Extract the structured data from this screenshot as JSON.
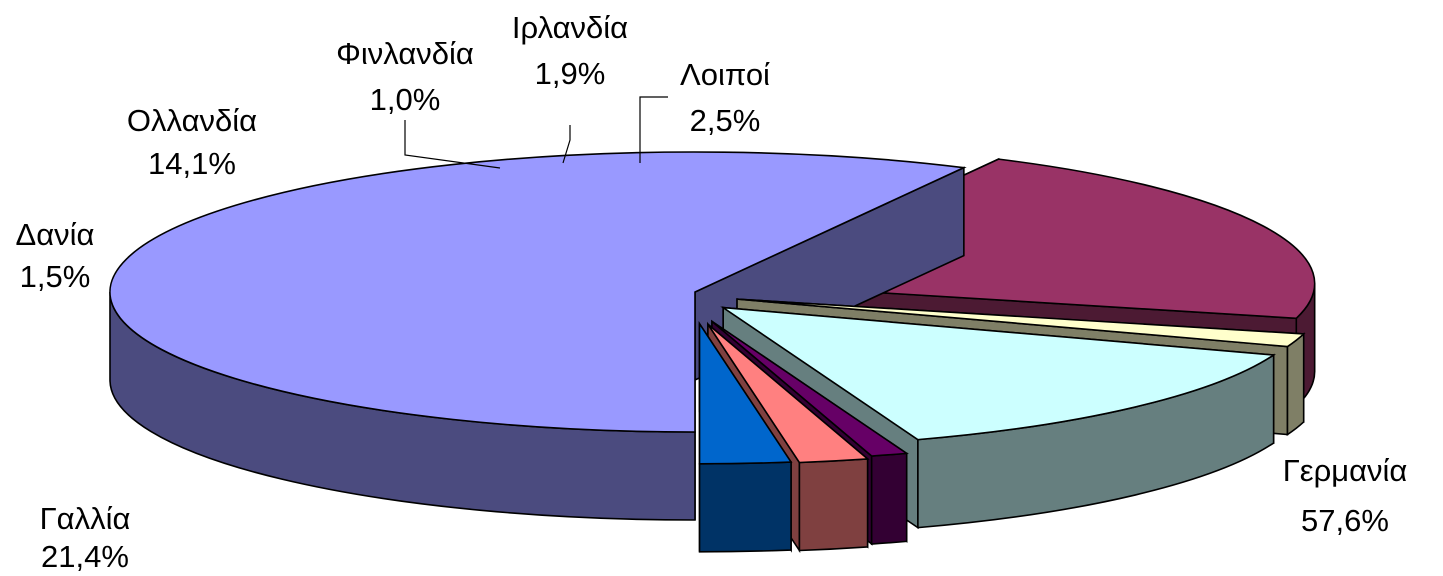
{
  "chart_data": {
    "type": "pie",
    "three_d": true,
    "exploded": true,
    "title": "",
    "slices": [
      {
        "name": "Γερμανία",
        "value": 57.6,
        "label": "57,6%",
        "top_color": "#9999FF",
        "side_color": "#4B4B7F"
      },
      {
        "name": "Γαλλία",
        "value": 21.4,
        "label": "21,4%",
        "top_color": "#993366",
        "side_color": "#4C1A33"
      },
      {
        "name": "Δανία",
        "value": 1.5,
        "label": "1,5%",
        "top_color": "#FFFFCC",
        "side_color": "#7F7F66"
      },
      {
        "name": "Ολλανδία",
        "value": 14.1,
        "label": "14,1%",
        "top_color": "#CCFFFF",
        "side_color": "#667F7F"
      },
      {
        "name": "Φινλανδία",
        "value": 1.0,
        "label": "1,0%",
        "top_color": "#660066",
        "side_color": "#330033"
      },
      {
        "name": "Ιρλανδία",
        "value": 1.9,
        "label": "1,9%",
        "top_color": "#FF8080",
        "side_color": "#7F4040"
      },
      {
        "name": "Λοιποί",
        "value": 2.5,
        "label": "2,5%",
        "top_color": "#0066CC",
        "side_color": "#003366"
      }
    ]
  }
}
